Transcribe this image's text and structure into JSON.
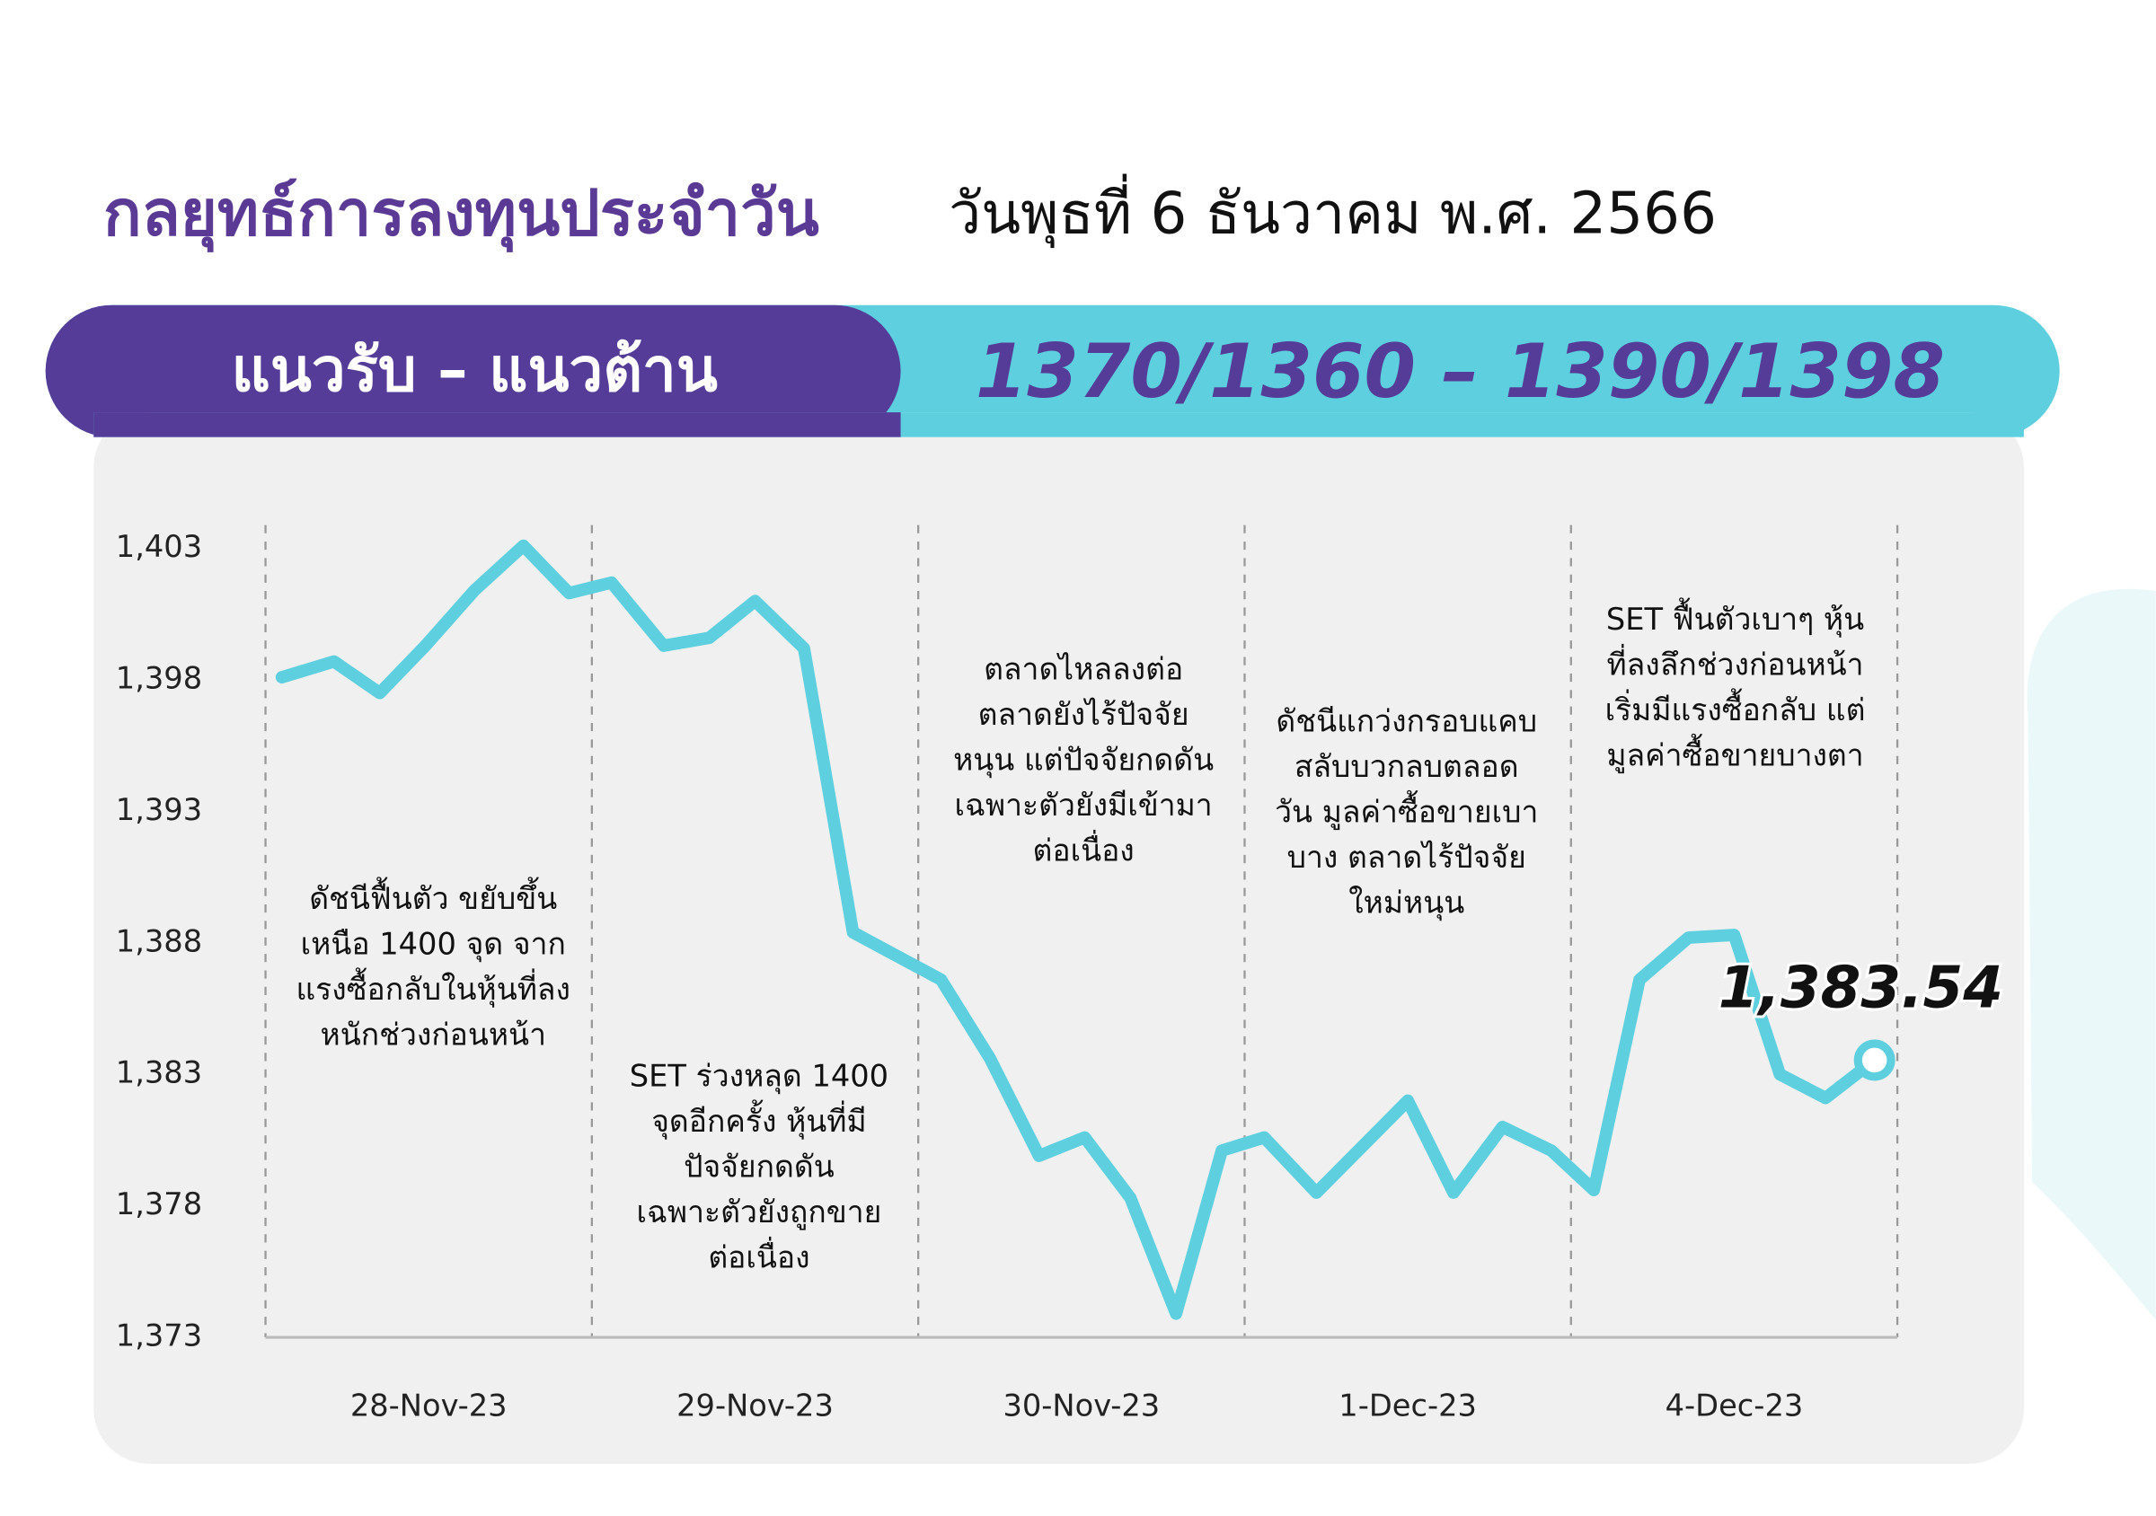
{
  "header": {
    "title": "กลยุทธ์การลงทุนประจำวัน",
    "date": "วันพุธที่ 6 ธันวาคม พ.ศ. 2566"
  },
  "banner": {
    "label": "แนวรับ – แนวต้าน",
    "levels": "1370/1360 – 1390/1398"
  },
  "chart_data": {
    "type": "line",
    "x": [
      0.05,
      0.21,
      0.35,
      0.49,
      0.64,
      0.79,
      0.93,
      1.06,
      1.22,
      1.36,
      1.5,
      1.65,
      1.8,
      2.07,
      2.22,
      2.37,
      2.51,
      2.65,
      2.79,
      2.93,
      3.06,
      3.22,
      3.5,
      3.64,
      3.79,
      3.94,
      4.07,
      4.21,
      4.36,
      4.5,
      4.64,
      4.78,
      4.93
    ],
    "series": [
      {
        "name": "SET",
        "color": "#5ecfde",
        "values": [
          1398.1,
          1398.7,
          1397.5,
          1399.3,
          1401.4,
          1403.1,
          1401.3,
          1401.7,
          1399.3,
          1399.6,
          1401.0,
          1399.2,
          1388.4,
          1386.6,
          1383.6,
          1379.9,
          1380.6,
          1378.3,
          1373.9,
          1380.1,
          1380.6,
          1378.5,
          1382.0,
          1378.5,
          1381.0,
          1380.1,
          1378.6,
          1386.6,
          1388.2,
          1388.3,
          1383.0,
          1382.1,
          1383.54
        ],
        "value_labels": [
          null,
          null,
          null,
          null,
          null,
          null,
          null,
          null,
          null,
          null,
          null,
          null,
          null,
          null,
          null,
          null,
          null,
          null,
          null,
          null,
          null,
          null,
          null,
          null,
          null,
          null,
          null,
          null,
          null,
          null,
          null,
          null,
          "1,383.54"
        ]
      }
    ],
    "xlim": [
      0,
      5
    ],
    "xticks": [
      {
        "value": 0.5,
        "label": "28-Nov-23"
      },
      {
        "value": 1.5,
        "label": "29-Nov-23"
      },
      {
        "value": 2.5,
        "label": "30-Nov-23"
      },
      {
        "value": 3.5,
        "label": "1-Dec-23"
      },
      {
        "value": 4.5,
        "label": "4-Dec-23"
      }
    ],
    "ylim": [
      1373,
      1403
    ],
    "yticks": [
      {
        "value": 1373,
        "label": "1,373"
      },
      {
        "value": 1378,
        "label": "1,378"
      },
      {
        "value": 1383,
        "label": "1,383"
      },
      {
        "value": 1388,
        "label": "1,388"
      },
      {
        "value": 1393,
        "label": "1,393"
      },
      {
        "value": 1398,
        "label": "1,398"
      },
      {
        "value": 1403,
        "label": "1,403"
      }
    ],
    "annotations": [
      [
        "ดัชนีฟื้นตัว ขยับขึ้น",
        "เหนือ 1400 จุด จาก",
        "แรงซื้อกลับในหุ้นที่ลง",
        "หนักช่วงก่อนหน้า"
      ],
      [
        "SET ร่วงหลุด 1400",
        "จุดอีกครั้ง หุ้นที่มี",
        "ปัจจัยกดดัน",
        "เฉพาะตัวยังถูกขาย",
        "ต่อเนื่อง"
      ],
      [
        "ตลาดไหลลงต่อ",
        "ตลาดยังไร้ปัจจัย",
        "หนุน แต่ปัจจัยกดดัน",
        "เฉพาะตัวยังมีเข้ามา",
        "ต่อเนื่อง"
      ],
      [
        "ดัชนีแกว่งกรอบแคบ",
        "สลับบวกลบตลอด",
        "วัน มูลค่าซื้อขายเบา",
        "บาง ตลาดไร้ปัจจัย",
        "ใหม่หนุน"
      ],
      [
        "SET ฟื้นตัวเบาๆ หุ้น",
        "ที่ลงลึกช่วงก่อนหน้า",
        "เริ่มมีแรงซื้อกลับ แต่",
        "มูลค่าซื้อขายบางตา"
      ]
    ]
  }
}
